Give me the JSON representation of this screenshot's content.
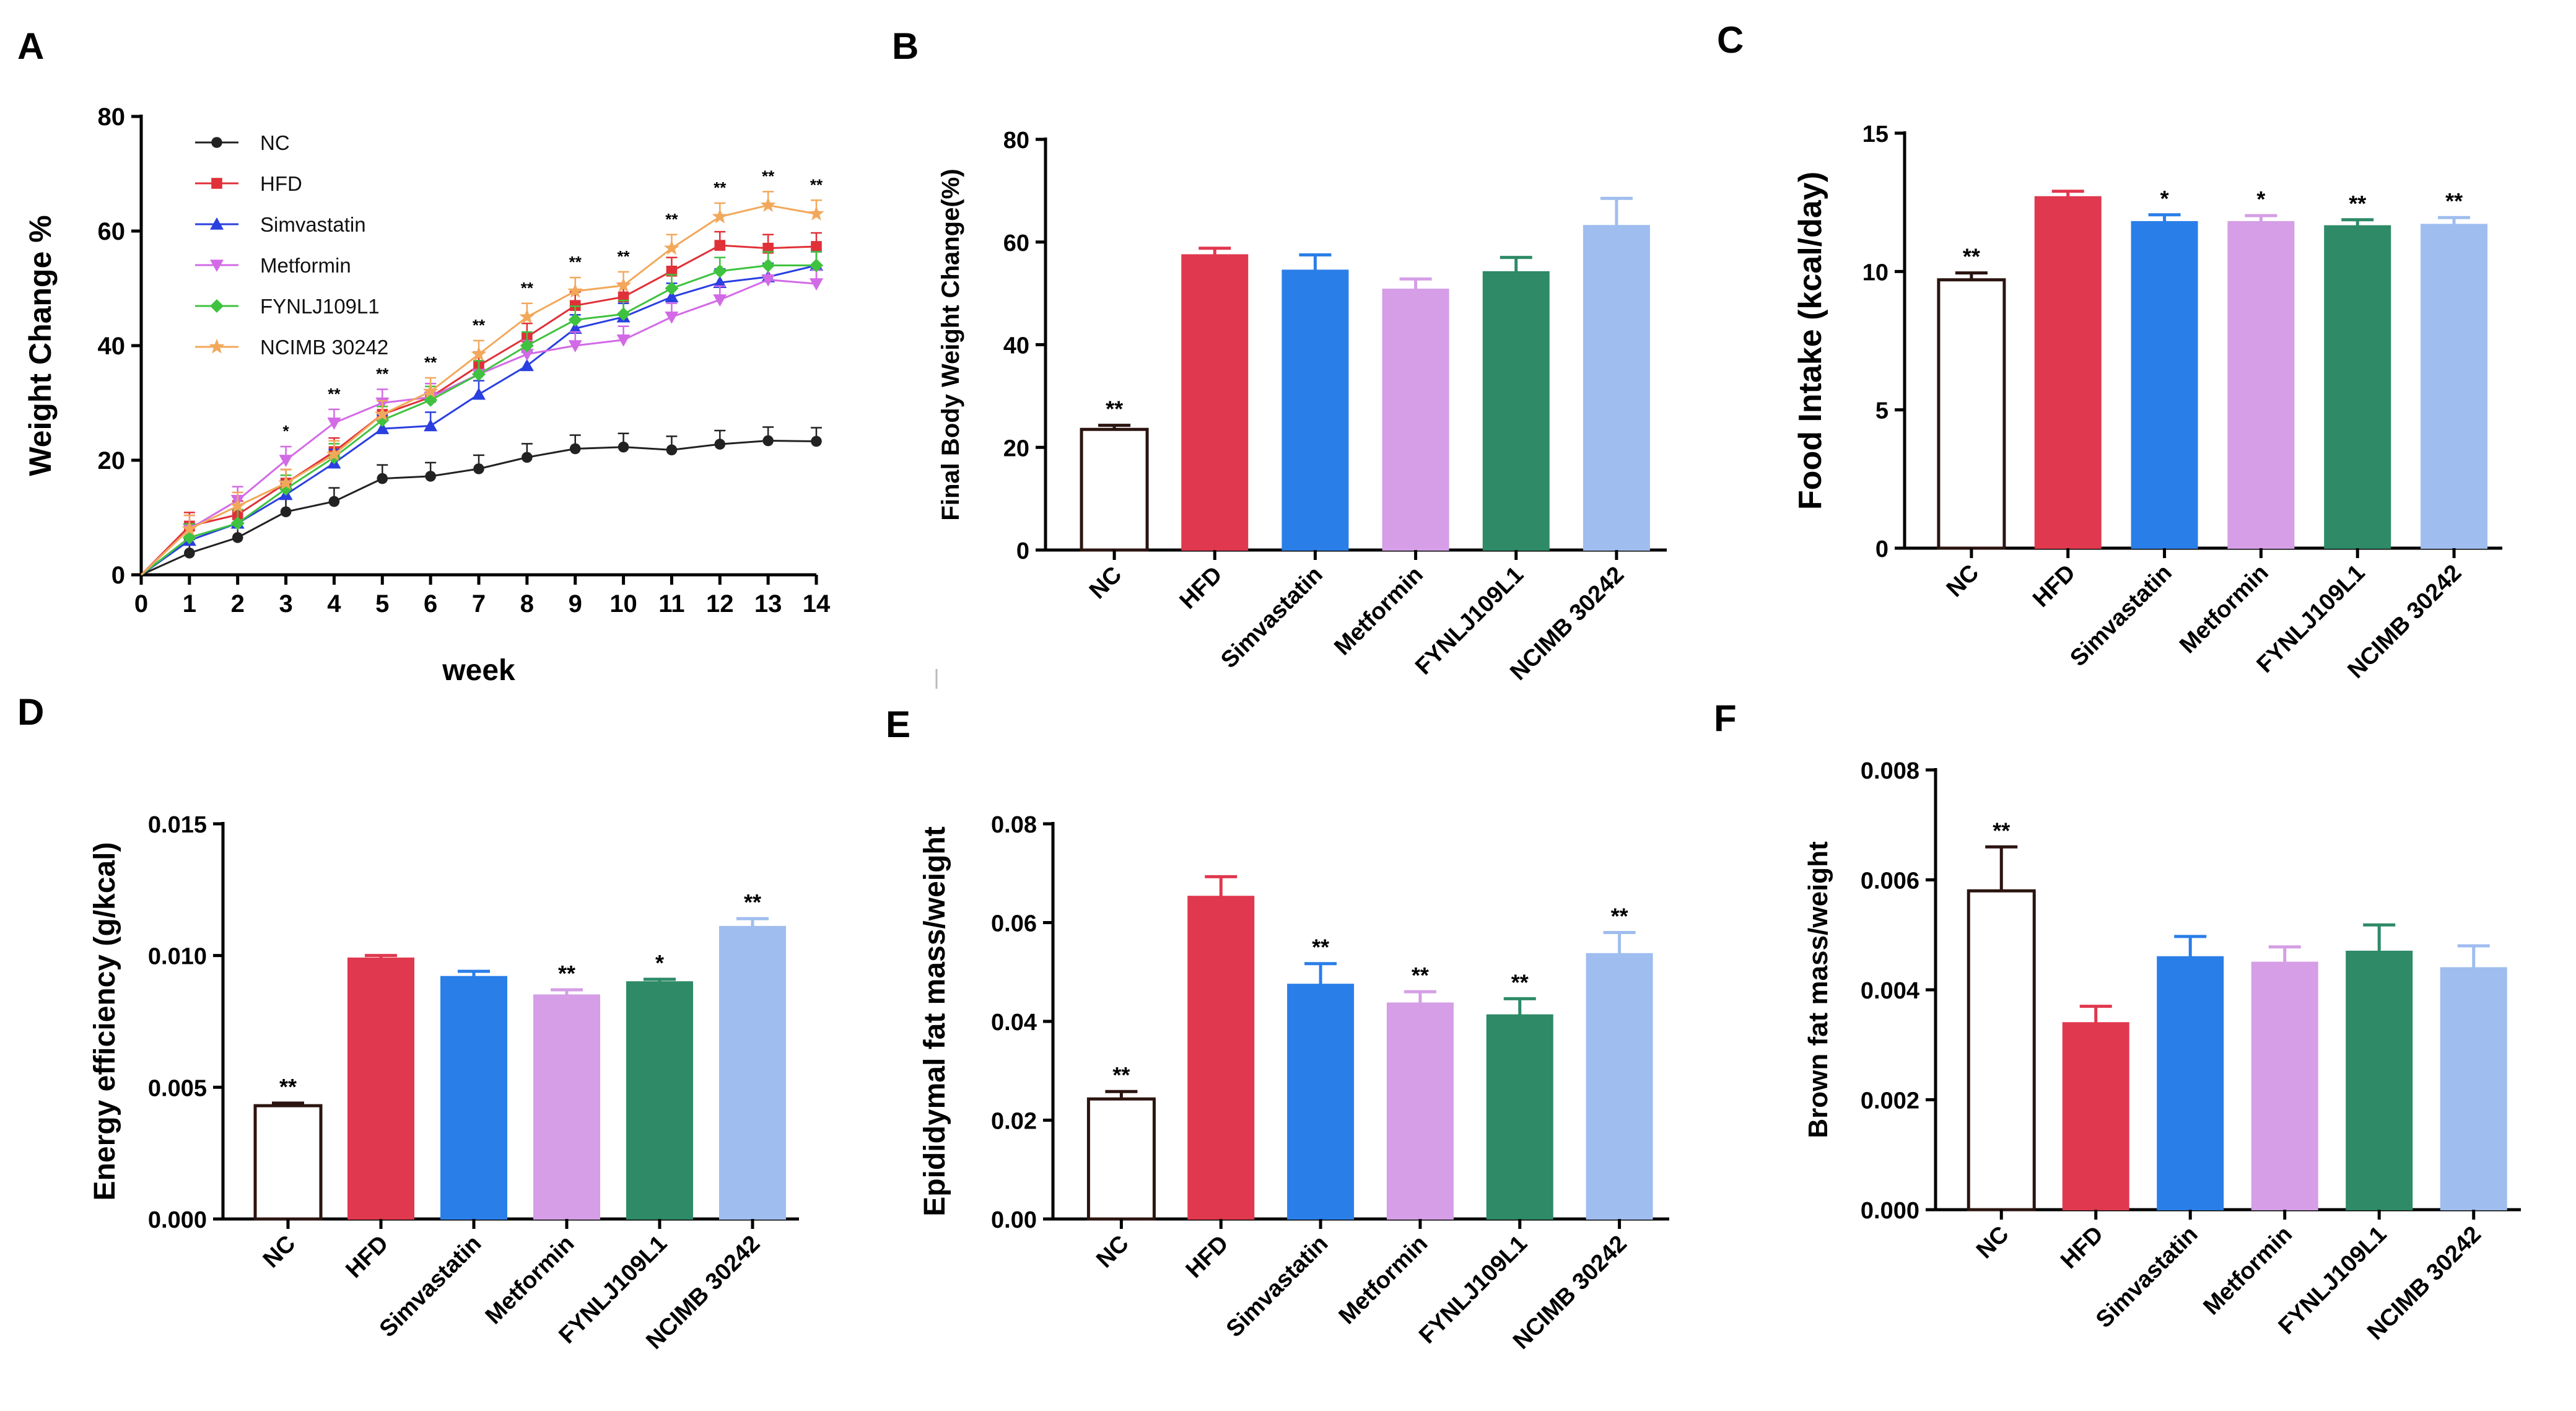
{
  "panels": {
    "A": {
      "letter": "A"
    },
    "B": {
      "letter": "B"
    },
    "C": {
      "letter": "C"
    },
    "D": {
      "letter": "D"
    },
    "E": {
      "letter": "E"
    },
    "F": {
      "letter": "F"
    }
  },
  "colors": {
    "NC": "#ffffff",
    "NC_edge": "#2b1410",
    "HFD": "#e0384e",
    "Simvastatin": "#2a7ee8",
    "Metformin": "#d59ee6",
    "FYNLJ109L1": "#2e8a67",
    "NCIMB 30242": "#9fbdef",
    "line_NC": "#222222",
    "line_HFD": "#e03038",
    "line_Simvastatin": "#2a3fe0",
    "line_Metformin": "#d26ae6",
    "line_FYNLJ109L1": "#3fc23f",
    "line_NCIMB": "#f2a85a"
  },
  "chart_data": [
    {
      "panel": "A",
      "type": "line",
      "title": "",
      "xlabel": "week",
      "ylabel": "Weight Change %",
      "xlim": [
        0,
        14
      ],
      "ylim": [
        0,
        80
      ],
      "x_ticks": [
        "0",
        "1",
        "2",
        "3",
        "4",
        "5",
        "6",
        "7",
        "8",
        "9",
        "10",
        "11",
        "12",
        "13",
        "14"
      ],
      "y_ticks": [
        "0",
        "20",
        "40",
        "60",
        "80"
      ],
      "x": [
        0,
        1,
        2,
        3,
        4,
        5,
        6,
        7,
        8,
        9,
        10,
        11,
        12,
        13,
        14
      ],
      "legend_position": "top-left",
      "series": [
        {
          "name": "NC",
          "marker": "circle",
          "values": [
            0,
            3.8,
            6.5,
            11,
            12.8,
            16.8,
            17.2,
            18.5,
            20.5,
            22,
            22.3,
            21.8,
            22.8,
            23.4,
            23.3
          ]
        },
        {
          "name": "HFD",
          "marker": "square",
          "values": [
            0,
            8.5,
            10.5,
            16,
            21.5,
            28,
            31,
            36.5,
            41.5,
            47,
            48.5,
            53,
            57.5,
            57,
            57.3
          ]
        },
        {
          "name": "Simvastatin",
          "marker": "triangle-up",
          "values": [
            0,
            6,
            9,
            14,
            19.5,
            25.5,
            26,
            31.5,
            36.5,
            43,
            45,
            48.5,
            51,
            52,
            54
          ]
        },
        {
          "name": "Metformin",
          "marker": "triangle-down",
          "values": [
            0,
            8,
            13,
            20,
            26.5,
            30,
            31,
            35,
            38.5,
            40,
            41,
            45,
            48,
            51.5,
            50.8
          ]
        },
        {
          "name": "FYNLJ109L1",
          "marker": "diamond",
          "values": [
            0,
            6.5,
            9,
            15,
            20.5,
            27,
            30.5,
            35,
            40,
            44.5,
            45.5,
            50,
            53,
            54,
            54
          ]
        },
        {
          "name": "NCIMB 30242",
          "marker": "star",
          "values": [
            0,
            8,
            12,
            16,
            21,
            28,
            32,
            38.5,
            45,
            49.5,
            50.5,
            57,
            62.5,
            64.5,
            63
          ]
        }
      ],
      "significance": [
        {
          "x": 3,
          "label": "*"
        },
        {
          "x": 4,
          "label": "**"
        },
        {
          "x": 5,
          "label": "**"
        },
        {
          "x": 6,
          "label": "**"
        },
        {
          "x": 7,
          "label": "**"
        },
        {
          "x": 8,
          "label": "**"
        },
        {
          "x": 9,
          "label": "**"
        },
        {
          "x": 10,
          "label": "**"
        },
        {
          "x": 11,
          "label": "**"
        },
        {
          "x": 12,
          "label": "**"
        },
        {
          "x": 13,
          "label": "**"
        },
        {
          "x": 14,
          "label": "**"
        }
      ]
    },
    {
      "panel": "B",
      "type": "bar",
      "title": "",
      "xlabel": "",
      "ylabel": "Final Body Weight Change(%)",
      "ylim": [
        0,
        80
      ],
      "y_ticks": [
        "0",
        "20",
        "40",
        "60",
        "80"
      ],
      "categories": [
        "NC",
        "HFD",
        "Simvastatin",
        "Metformin",
        "FYNLJ109L1",
        "NCIMB 30242"
      ],
      "values": [
        23.5,
        57.5,
        54.5,
        50.8,
        54.2,
        63.2
      ],
      "errors": [
        0.8,
        1.3,
        3,
        2,
        2.8,
        5.3
      ],
      "significance": [
        "**",
        "",
        "",
        "",
        "",
        ""
      ]
    },
    {
      "panel": "C",
      "type": "bar",
      "title": "",
      "xlabel": "",
      "ylabel": "Food Intake (kcal/day)",
      "ylim": [
        0,
        15
      ],
      "y_ticks": [
        "0",
        "5",
        "10",
        "15"
      ],
      "categories": [
        "NC",
        "HFD",
        "Simvastatin",
        "Metformin",
        "FYNLJ109L1",
        "NCIMB 30242"
      ],
      "values": [
        9.7,
        12.7,
        11.8,
        11.8,
        11.65,
        11.7
      ],
      "errors": [
        0.25,
        0.2,
        0.25,
        0.22,
        0.22,
        0.25
      ],
      "significance": [
        "**",
        "",
        "*",
        "*",
        "**",
        "**"
      ]
    },
    {
      "panel": "D",
      "type": "bar",
      "title": "",
      "xlabel": "",
      "ylabel": "Energy efficiency  (g/kcal)",
      "ylim": [
        0,
        0.015
      ],
      "y_ticks": [
        "0.000",
        "0.005",
        "0.010",
        "0.015"
      ],
      "categories": [
        "NC",
        "HFD",
        "Simvastatin",
        "Metformin",
        "FYNLJ109L1",
        "NCIMB 30242"
      ],
      "values": [
        0.0043,
        0.0099,
        0.0092,
        0.0085,
        0.009,
        0.0111
      ],
      "errors": [
        0.0001,
        0.0001,
        0.0002,
        0.0002,
        0.0001,
        0.0003
      ],
      "significance": [
        "**",
        "",
        "",
        "**",
        "*",
        "**"
      ]
    },
    {
      "panel": "E",
      "type": "bar",
      "title": "",
      "xlabel": "",
      "ylabel": "Epididymal fat mass/weight",
      "ylim": [
        0,
        0.08
      ],
      "y_ticks": [
        "0.00",
        "0.02",
        "0.04",
        "0.06",
        "0.08"
      ],
      "categories": [
        "NC",
        "HFD",
        "Simvastatin",
        "Metformin",
        "FYNLJ109L1",
        "NCIMB 30242"
      ],
      "values": [
        0.0243,
        0.0653,
        0.0475,
        0.0437,
        0.0413,
        0.0537
      ],
      "errors": [
        0.0015,
        0.004,
        0.0042,
        0.0023,
        0.0033,
        0.0043
      ],
      "significance": [
        "**",
        "",
        "**",
        "**",
        "**",
        "**"
      ]
    },
    {
      "panel": "F",
      "type": "bar",
      "title": "",
      "xlabel": "",
      "ylabel": "Brown fat mass/weight",
      "ylim": [
        0,
        0.008
      ],
      "y_ticks": [
        "0.000",
        "0.002",
        "0.004",
        "0.006",
        "0.008"
      ],
      "categories": [
        "NC",
        "HFD",
        "Simvastatin",
        "Metformin",
        "FYNLJ109L1",
        "NCIMB 30242"
      ],
      "values": [
        0.0058,
        0.0034,
        0.0046,
        0.0045,
        0.0047,
        0.0044
      ],
      "errors": [
        0.0008,
        0.0003,
        0.00037,
        0.00028,
        0.00048,
        0.0004
      ],
      "significance": [
        "**",
        "",
        "",
        "",
        "",
        ""
      ]
    }
  ]
}
